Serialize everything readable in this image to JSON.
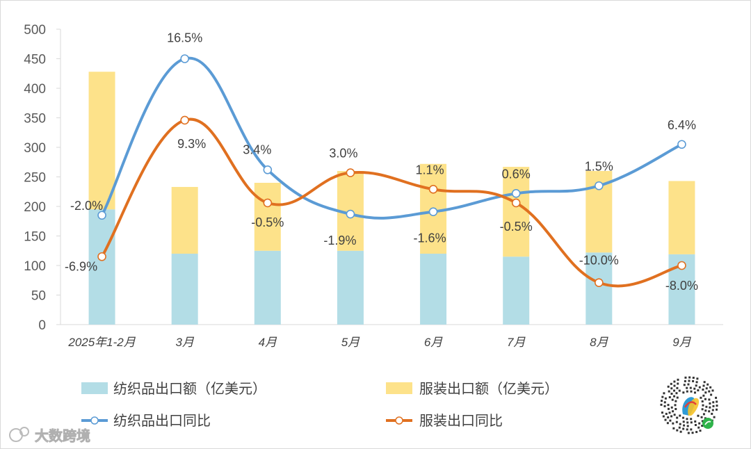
{
  "chart_data": {
    "type": "bar+line",
    "categories": [
      "2025年1-2月",
      "3月",
      "4月",
      "5月",
      "6月",
      "7月",
      "8月",
      "9月"
    ],
    "y_axis": {
      "min": 0,
      "max": 500,
      "step": 50,
      "ticks": [
        "0",
        "50",
        "100",
        "150",
        "200",
        "250",
        "300",
        "350",
        "400",
        "450",
        "500"
      ]
    },
    "stacked_bars": [
      {
        "name": "纺织品出口额（亿美元）",
        "color": "#b3dde6",
        "values": [
          195,
          120,
          125,
          125,
          120,
          115,
          122,
          119
        ]
      },
      {
        "name": "服装出口额（亿美元）",
        "color": "#fde28a",
        "values": [
          233,
          113,
          115,
          135,
          152,
          152,
          138,
          124
        ]
      }
    ],
    "lines": [
      {
        "name": "纺织品出口同比",
        "color": "#5b9bd5",
        "plot_values": [
          185,
          450,
          262,
          187,
          191,
          222,
          235,
          305
        ],
        "labels": [
          "-2.0%",
          "16.5%",
          "3.4%",
          "-1.9%",
          "-1.6%",
          "0.6%",
          "1.5%",
          "6.4%"
        ]
      },
      {
        "name": "服装出口同比",
        "color": "#e07020",
        "plot_values": [
          115,
          346,
          206,
          257,
          229,
          206,
          71,
          100
        ],
        "labels": [
          "-6.9%",
          "9.3%",
          "-0.5%",
          "3.0%",
          "1.1%",
          "-0.5%",
          "-10.0%",
          "-8.0%"
        ]
      }
    ],
    "legend_position": "bottom"
  },
  "watermark": {
    "text": "大数跨境"
  }
}
